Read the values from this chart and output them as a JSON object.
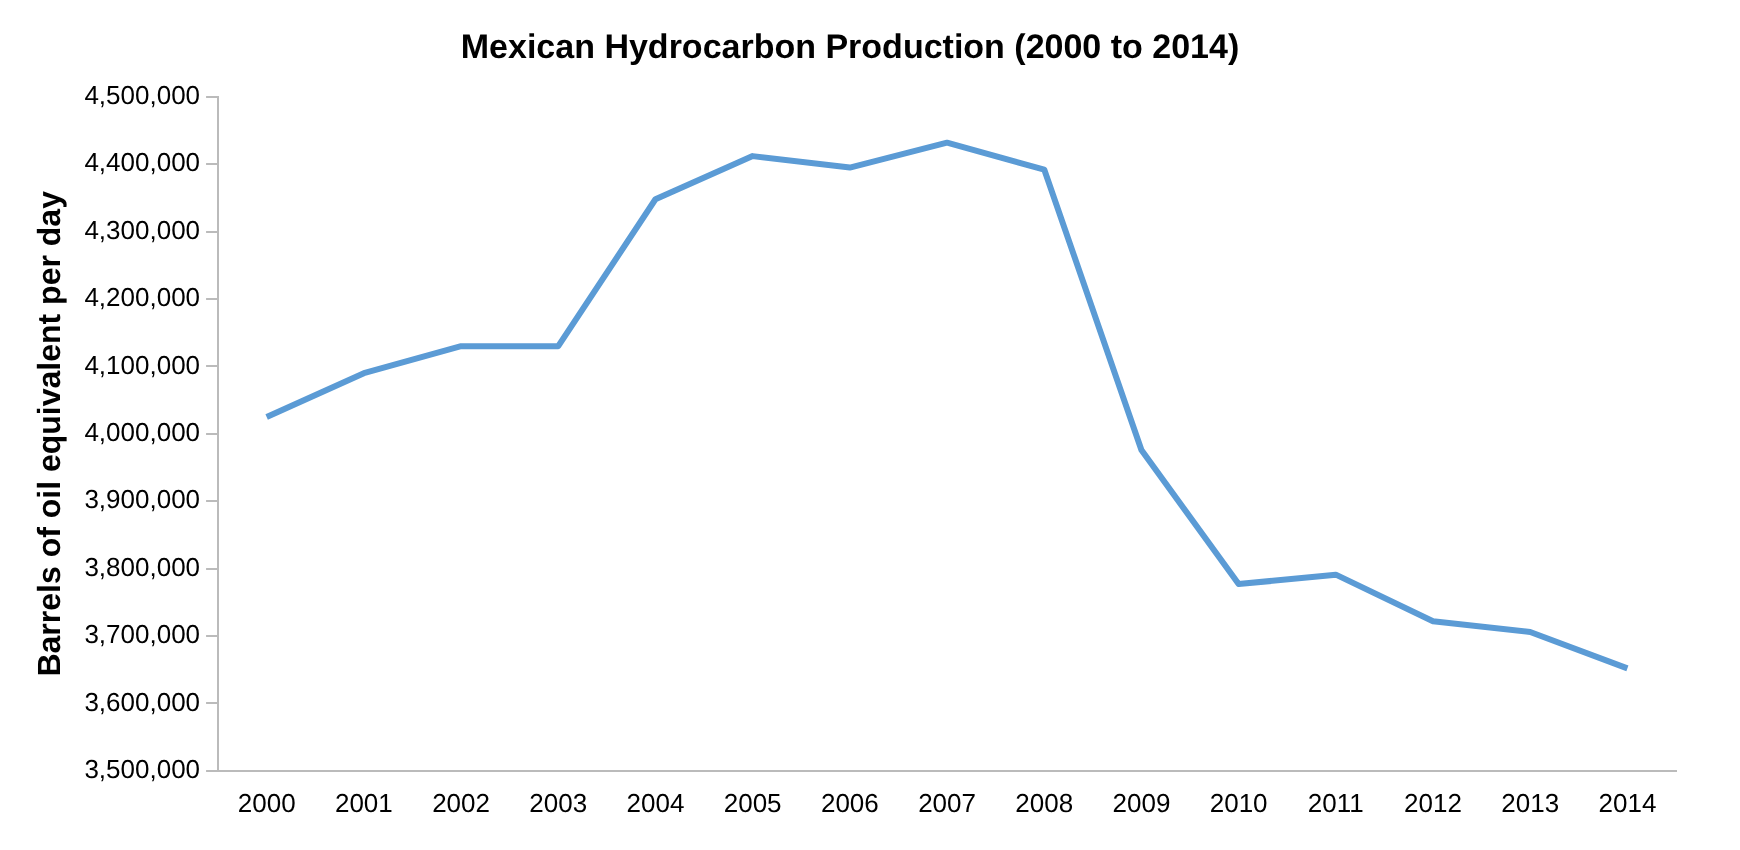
{
  "chart_data": {
    "type": "line",
    "title": "Mexican Hydrocarbon Production (2000 to 2014)",
    "ylabel": "Barrels of oil equivalent per day",
    "categories": [
      "2000",
      "2001",
      "2002",
      "2003",
      "2004",
      "2005",
      "2006",
      "2007",
      "2008",
      "2009",
      "2010",
      "2011",
      "2012",
      "2013",
      "2014"
    ],
    "series": [
      {
        "color": "#5b9bd5",
        "values": [
          4025000,
          4090000,
          4130000,
          4130000,
          4348000,
          4412000,
          4395000,
          4432000,
          4392000,
          3976000,
          3777000,
          3791000,
          3722000,
          3706000,
          3652000
        ]
      }
    ],
    "ylim": [
      3500000,
      4500000
    ],
    "yticks": [
      {
        "value": 3500000,
        "label": "3,500,000"
      },
      {
        "value": 3600000,
        "label": "3,600,000"
      },
      {
        "value": 3700000,
        "label": "3,700,000"
      },
      {
        "value": 3800000,
        "label": "3,800,000"
      },
      {
        "value": 3900000,
        "label": "3,900,000"
      },
      {
        "value": 4000000,
        "label": "4,000,000"
      },
      {
        "value": 4100000,
        "label": "4,100,000"
      },
      {
        "value": 4200000,
        "label": "4,200,000"
      },
      {
        "value": 4300000,
        "label": "4,300,000"
      },
      {
        "value": 4400000,
        "label": "4,400,000"
      },
      {
        "value": 4500000,
        "label": "4,500,000"
      }
    ],
    "grid": false,
    "legend": false,
    "marker": "none",
    "line_style": "solid"
  }
}
